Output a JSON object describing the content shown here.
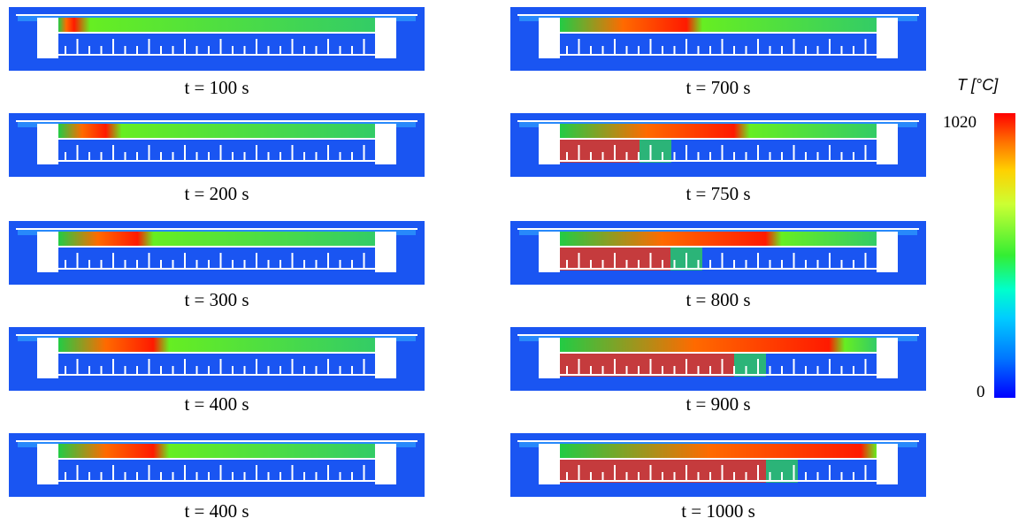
{
  "figure": {
    "panels_left": [
      {
        "time_label": "t = 100 s",
        "hot_fraction": 0.05
      },
      {
        "time_label": "t = 200 s",
        "hot_fraction": 0.15
      },
      {
        "time_label": "t = 300 s",
        "hot_fraction": 0.25
      },
      {
        "time_label": "t = 400 s",
        "hot_fraction": 0.3
      },
      {
        "time_label": "t = 400 s",
        "hot_fraction": 0.3
      }
    ],
    "panels_right": [
      {
        "time_label": "t = 700 s",
        "hot_fraction": 0.4
      },
      {
        "time_label": "t = 750 s",
        "hot_fraction": 0.55
      },
      {
        "time_label": "t = 800 s",
        "hot_fraction": 0.65
      },
      {
        "time_label": "t = 900 s",
        "hot_fraction": 0.85
      },
      {
        "time_label": "t = 1000 s",
        "hot_fraction": 0.95
      }
    ],
    "colorbar": {
      "title": "T [°C]",
      "max_label": "1020",
      "min_label": "0",
      "colors": [
        "#ff0000",
        "#ffd000",
        "#33ee33",
        "#00ccff",
        "#0000ff"
      ]
    }
  }
}
